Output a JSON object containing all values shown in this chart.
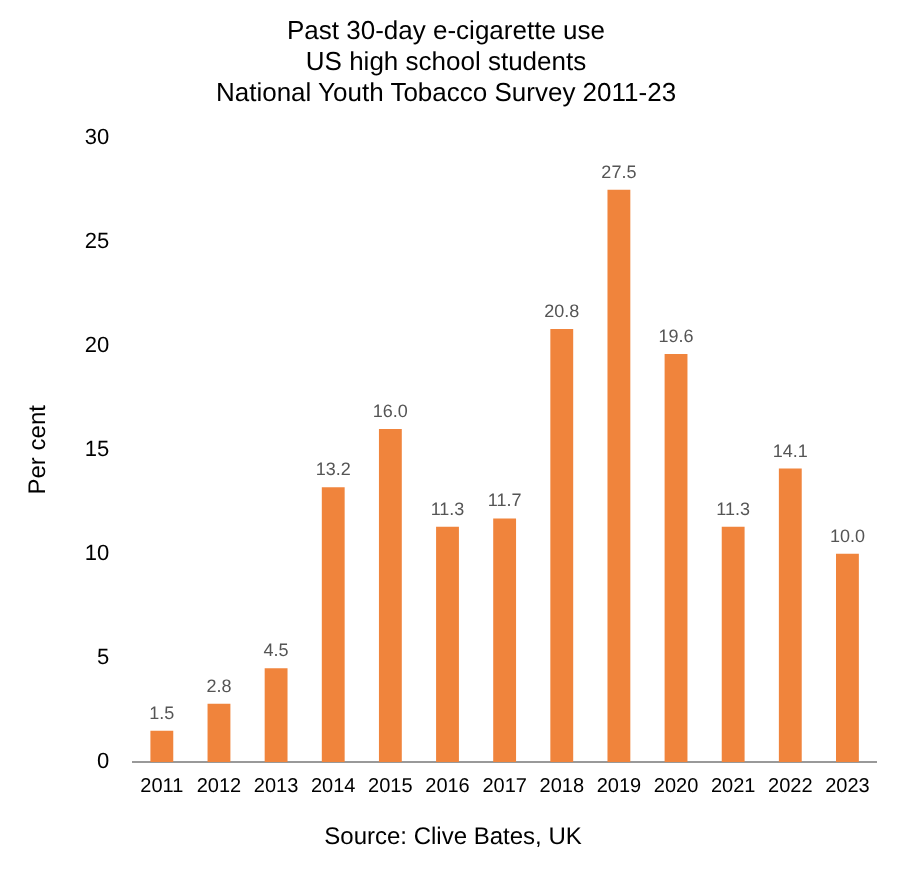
{
  "chart_data": {
    "type": "bar",
    "title": "Past 30-day e-cigarette use\nUS high school students\nNational Youth Tobacco Survey 2011-23",
    "ylabel": "Per cent",
    "categories": [
      "2011",
      "2012",
      "2013",
      "2014",
      "2015",
      "2016",
      "2017",
      "2018",
      "2019",
      "2020",
      "2021",
      "2022",
      "2023"
    ],
    "values": [
      1.5,
      2.8,
      4.5,
      13.2,
      16.0,
      11.3,
      11.7,
      20.8,
      27.5,
      19.6,
      11.3,
      14.1,
      10.0
    ],
    "value_labels": [
      "1.5",
      "2.8",
      "4.5",
      "13.2",
      "16.0",
      "11.3",
      "11.7",
      "20.8",
      "27.5",
      "19.6",
      "11.3",
      "14.1",
      "10.0"
    ],
    "color": "#f0843c",
    "ylim": [
      0,
      30
    ],
    "yticks": [
      0,
      5,
      10,
      15,
      20,
      25,
      30
    ],
    "grid": false,
    "legend": false,
    "annotations": [
      "Source: Clive Bates, UK"
    ]
  }
}
